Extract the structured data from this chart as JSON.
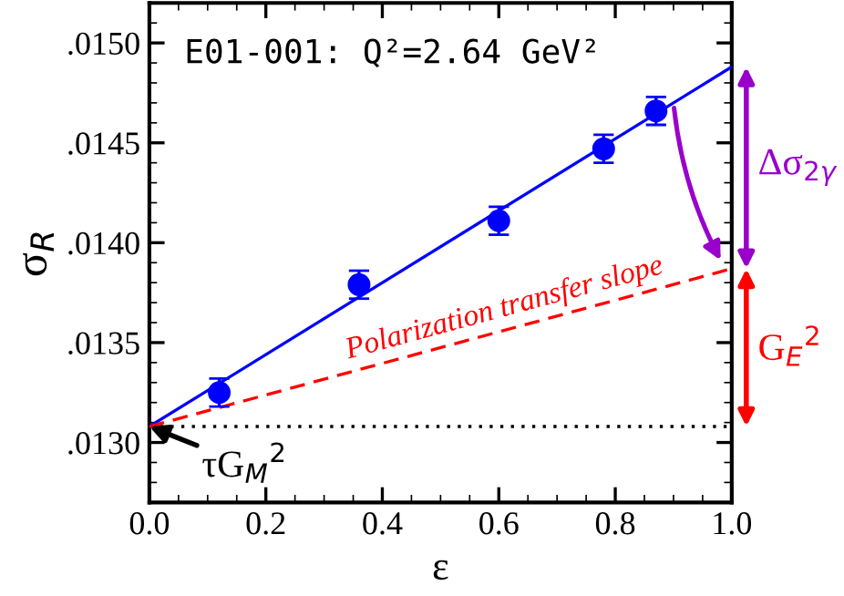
{
  "chart_data": {
    "type": "scatter",
    "xlabel": "ε",
    "ylabel": "σ$_{R}$",
    "xlim": [
      0.0,
      1.0
    ],
    "ylim": [
      0.0127,
      0.0152
    ],
    "xticks": [
      {
        "value": 0.0,
        "label": "0.0"
      },
      {
        "value": 0.2,
        "label": "0.2"
      },
      {
        "value": 0.4,
        "label": "0.4"
      },
      {
        "value": 0.6,
        "label": "0.6"
      },
      {
        "value": 0.8,
        "label": "0.8"
      },
      {
        "value": 1.0,
        "label": "1.0"
      }
    ],
    "yticks": [
      {
        "value": 0.013,
        "label": ".0130"
      },
      {
        "value": 0.0135,
        "label": ".0135"
      },
      {
        "value": 0.014,
        "label": ".0140"
      },
      {
        "value": 0.0145,
        "label": ".0145"
      },
      {
        "value": 0.015,
        "label": ".0150"
      }
    ],
    "grid": false,
    "legend": false,
    "series": [
      {
        "color": "#0000ff",
        "marker": "circle",
        "x": [
          0.12,
          0.36,
          0.6,
          0.78,
          0.87
        ],
        "values": [
          0.01325,
          0.01379,
          0.01411,
          0.01447,
          0.01466
        ],
        "errors": [
          7e-05,
          7e-05,
          7e-05,
          7e-05,
          7e-05
        ]
      },
      {
        "type": "line",
        "color": "#0000ff",
        "line_style": "solid",
        "x": [
          0.0,
          1.0
        ],
        "values": [
          0.01308,
          0.01488
        ]
      },
      {
        "type": "line",
        "color": "#ff0000",
        "line_style": "dashed",
        "x": [
          0.0,
          1.0
        ],
        "values": [
          0.01308,
          0.01387
        ]
      }
    ],
    "ref_lines": [
      {
        "axis": "y",
        "value": 0.01308,
        "color": "#000000",
        "line_style": "dotted"
      }
    ],
    "annotations": [
      "E01-001: Q²=2.64 GeV²",
      {
        "text": "Polarization transfer slope",
        "x": 0.62,
        "y": 0.01356
      },
      {
        "text": "τG$_{M}$$^{2}$",
        "x": 0.0,
        "y": 0.01308
      },
      "Δσ$_{2γ}$",
      "G$_{E}$$^{2}$"
    ]
  }
}
